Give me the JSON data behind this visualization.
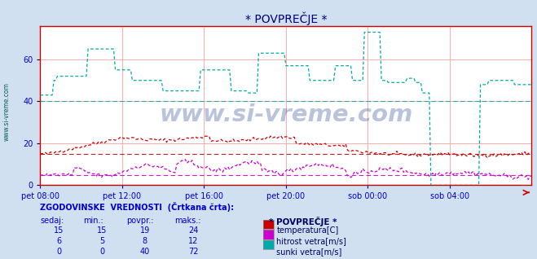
{
  "title": "* POVPREČJE *",
  "bg_color": "#d0e0f0",
  "plot_bg_color": "#ffffff",
  "grid_color": "#ffaaaa",
  "xlim": [
    0,
    288
  ],
  "ylim": [
    0,
    76
  ],
  "yticks": [
    0,
    20,
    40,
    60
  ],
  "xtick_labels": [
    "pet 08:00",
    "pet 12:00",
    "pet 16:00",
    "pet 20:00",
    "sob 00:00",
    "sob 04:00"
  ],
  "xtick_positions": [
    0,
    48,
    96,
    144,
    192,
    240
  ],
  "title_color": "#000080",
  "axis_color": "#cc0000",
  "tick_color": "#0000cc",
  "watermark": "www.si-vreme.com",
  "watermark_color": "#1a3a8a",
  "watermark_alpha": 0.3,
  "ylabel_text": "www.si-vreme.com",
  "ylabel_color": "#006060",
  "legend_title": "* POVPREČJE *",
  "legend_items": [
    {
      "label": "temperatura[C]",
      "color": "#cc0000"
    },
    {
      "label": "hitrost vetra[m/s]",
      "color": "#cc00cc"
    },
    {
      "label": "sunki vetra[m/s]",
      "color": "#00aaaa"
    }
  ],
  "stats_header": "ZGODOVINSKE  VREDNOSTI  (Črtkana črta):",
  "stats_cols": [
    "sedaj:",
    "min.:",
    "povpr.:",
    "maks.:"
  ],
  "stats_data": [
    [
      15,
      15,
      19,
      24
    ],
    [
      6,
      5,
      8,
      12
    ],
    [
      0,
      0,
      40,
      72
    ]
  ],
  "hist_temp": 15,
  "hist_wind": 5,
  "hist_gust": 40,
  "temp_color": "#cc0000",
  "wind_color": "#cc00cc",
  "gust_color": "#00aaaa"
}
